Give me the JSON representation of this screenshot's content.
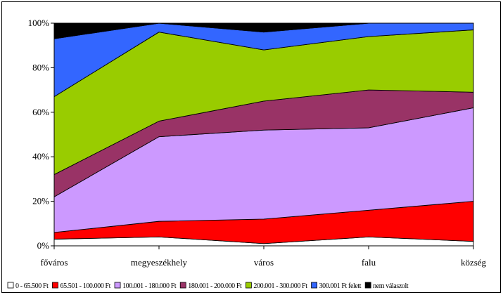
{
  "chart_data": {
    "type": "area",
    "stacked": true,
    "categories": [
      "főváros",
      "megyeszékhely",
      "város",
      "falu",
      "község"
    ],
    "yticks": [
      "0%",
      "20%",
      "40%",
      "60%",
      "80%",
      "100%"
    ],
    "ylim": [
      0,
      100
    ],
    "grid": false,
    "legend_position": "bottom",
    "series": [
      {
        "name": "0 - 65.500 Ft",
        "color": "#ffffff",
        "values": [
          3,
          4,
          1,
          4,
          2
        ]
      },
      {
        "name": "65.501 - 100.000 Ft",
        "color": "#ff0000",
        "values": [
          3,
          7,
          11,
          12,
          18
        ]
      },
      {
        "name": "100.001 - 180.000 Ft",
        "color": "#cc99ff",
        "values": [
          16,
          38,
          40,
          37,
          42
        ]
      },
      {
        "name": "180.001 - 200.000 Ft",
        "color": "#993366",
        "values": [
          10,
          7,
          13,
          17,
          7
        ]
      },
      {
        "name": "200.001 - 300.000 Ft",
        "color": "#99cc00",
        "values": [
          35,
          40,
          23,
          24,
          28
        ]
      },
      {
        "name": "300.001 Ft felett",
        "color": "#3366ff",
        "values": [
          26,
          4,
          8,
          6,
          3
        ]
      },
      {
        "name": "nem válaszolt",
        "color": "#000000",
        "values": [
          7,
          0,
          4,
          0,
          0
        ]
      }
    ]
  }
}
